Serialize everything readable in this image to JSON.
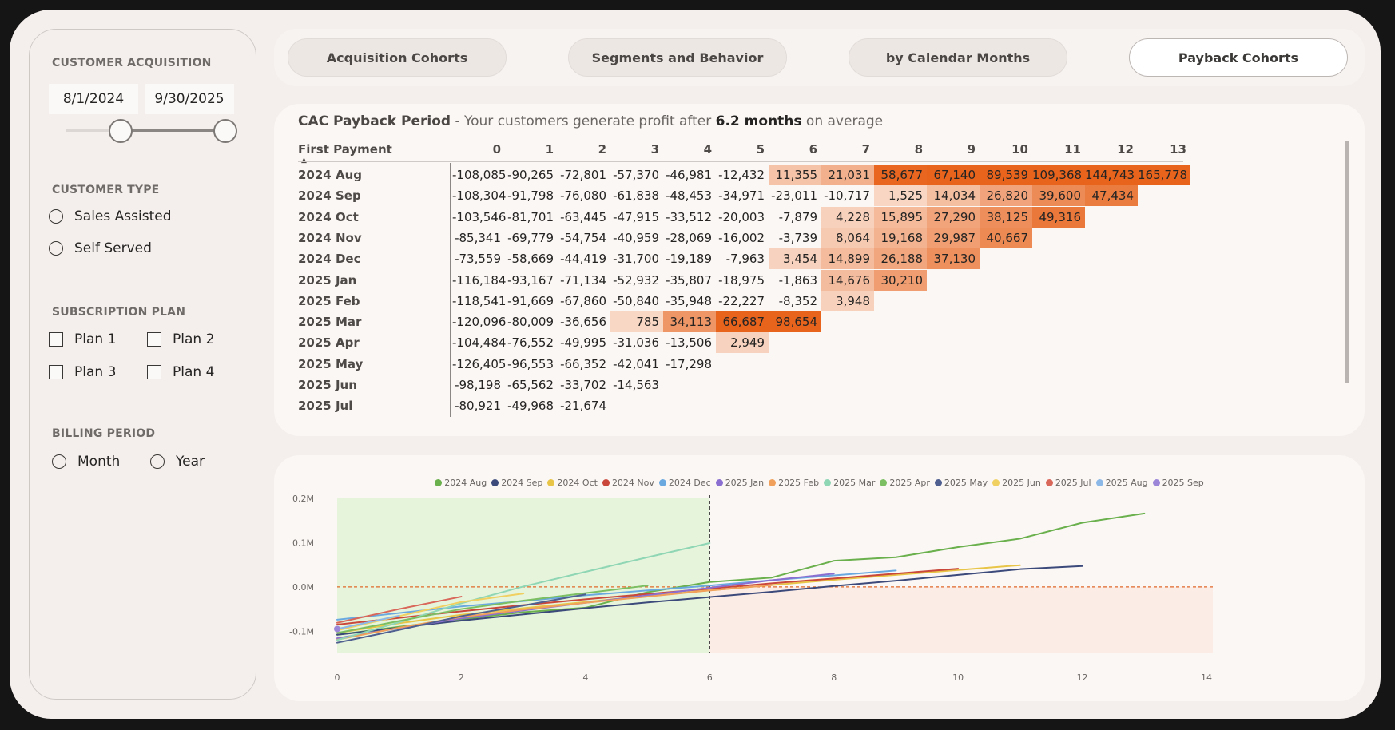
{
  "filters": {
    "customer_acquisition": {
      "title": "CUSTOMER ACQUISITION",
      "start_date": "8/1/2024",
      "end_date": "9/30/2025"
    },
    "customer_type": {
      "title": "CUSTOMER TYPE",
      "options": [
        "Sales Assisted",
        "Self Served"
      ]
    },
    "subscription_plan": {
      "title": "SUBSCRIPTION PLAN",
      "options": [
        "Plan 1",
        "Plan 2",
        "Plan 3",
        "Plan 4"
      ]
    },
    "billing_period": {
      "title": "BILLING PERIOD",
      "options": [
        "Month",
        "Year"
      ]
    }
  },
  "tabs": [
    {
      "label": "Acquisition Cohorts",
      "active": false
    },
    {
      "label": "Segments and Behavior",
      "active": false
    },
    {
      "label": "by Calendar Months",
      "active": false
    },
    {
      "label": "Payback Cohorts",
      "active": true
    }
  ],
  "matrix": {
    "title_main": "CAC Payback Period",
    "title_pre": " - Your customers generate profit after ",
    "title_value": "6.2 months",
    "title_post": " on average",
    "row_header": "First Payment",
    "sort_indicator": "▲",
    "columns": [
      "0",
      "1",
      "2",
      "3",
      "4",
      "5",
      "6",
      "7",
      "8",
      "9",
      "10",
      "11",
      "12",
      "13"
    ],
    "rows": [
      {
        "label": "2024 Aug",
        "values": [
          -108085,
          -90265,
          -72801,
          -57370,
          -46981,
          -12432,
          11355,
          21031,
          58677,
          67140,
          89539,
          109368,
          144743,
          165778
        ]
      },
      {
        "label": "2024 Sep",
        "values": [
          -108304,
          -91798,
          -76080,
          -61838,
          -48453,
          -34971,
          -23011,
          -10717,
          1525,
          14034,
          26820,
          39600,
          47434
        ]
      },
      {
        "label": "2024 Oct",
        "values": [
          -103546,
          -81701,
          -63445,
          -47915,
          -33512,
          -20003,
          -7879,
          4228,
          15895,
          27290,
          38125,
          49316
        ]
      },
      {
        "label": "2024 Nov",
        "values": [
          -85341,
          -69779,
          -54754,
          -40959,
          -28069,
          -16002,
          -3739,
          8064,
          19168,
          29987,
          40667
        ]
      },
      {
        "label": "2024 Dec",
        "values": [
          -73559,
          -58669,
          -44419,
          -31700,
          -19189,
          -7963,
          3454,
          14899,
          26188,
          37130
        ]
      },
      {
        "label": "2025 Jan",
        "values": [
          -116184,
          -93167,
          -71134,
          -52932,
          -35807,
          -18975,
          -1863,
          14676,
          30210
        ]
      },
      {
        "label": "2025 Feb",
        "values": [
          -118541,
          -91669,
          -67860,
          -50840,
          -35948,
          -22227,
          -8352,
          3948
        ]
      },
      {
        "label": "2025 Mar",
        "values": [
          -120096,
          -80009,
          -36656,
          785,
          34113,
          66687,
          98654
        ]
      },
      {
        "label": "2025 Apr",
        "values": [
          -104484,
          -76552,
          -49995,
          -31036,
          -13506,
          2949
        ]
      },
      {
        "label": "2025 May",
        "values": [
          -126405,
          -96553,
          -66352,
          -42041,
          -17298
        ]
      },
      {
        "label": "2025 Jun",
        "values": [
          -98198,
          -65562,
          -33702,
          -14563
        ]
      },
      {
        "label": "2025 Jul",
        "values": [
          -80921,
          -49968,
          -21674
        ]
      }
    ]
  },
  "colors": {
    "heat_max": "#e8631c",
    "heat_min": "#fbeee6",
    "breakeven_line": "#e0692a",
    "payback_zone": "#e6f4dc",
    "loss_zone": "#fbece6"
  },
  "chart_data": {
    "type": "line",
    "title": "",
    "xlabel": "",
    "ylabel": "",
    "xlim": [
      0,
      14
    ],
    "ylim": [
      -0.15,
      0.2
    ],
    "x_ticks": [
      0,
      2,
      4,
      6,
      8,
      10,
      12,
      14
    ],
    "x_tick_labels": [
      "0",
      "2",
      "4",
      "6",
      "8",
      "10",
      "12",
      "14"
    ],
    "y_ticks": [
      0.2,
      0.1,
      0.0,
      -0.1
    ],
    "y_tick_labels": [
      "0.2M",
      "0.1M",
      "0.0M",
      "-0.1M"
    ],
    "reference_x": 6,
    "reference_y": 0,
    "series": [
      {
        "name": "2024 Aug",
        "color": "#6ab04c",
        "values": [
          -0.108,
          -0.09,
          -0.073,
          -0.057,
          -0.047,
          -0.012,
          0.011,
          0.021,
          0.059,
          0.067,
          0.09,
          0.109,
          0.145,
          0.166
        ]
      },
      {
        "name": "2024 Sep",
        "color": "#3b4a7a",
        "values": [
          -0.108,
          -0.092,
          -0.076,
          -0.062,
          -0.048,
          -0.035,
          -0.023,
          -0.011,
          0.002,
          0.014,
          0.027,
          0.04,
          0.047
        ]
      },
      {
        "name": "2024 Oct",
        "color": "#e8c547",
        "values": [
          -0.104,
          -0.082,
          -0.063,
          -0.048,
          -0.034,
          -0.02,
          -0.008,
          0.004,
          0.016,
          0.027,
          0.038,
          0.049
        ]
      },
      {
        "name": "2024 Nov",
        "color": "#c9473b",
        "values": [
          -0.085,
          -0.07,
          -0.055,
          -0.041,
          -0.028,
          -0.016,
          -0.004,
          0.008,
          0.019,
          0.03,
          0.041
        ]
      },
      {
        "name": "2024 Dec",
        "color": "#6aa9e0",
        "values": [
          -0.074,
          -0.059,
          -0.044,
          -0.032,
          -0.019,
          -0.008,
          0.003,
          0.015,
          0.026,
          0.037
        ]
      },
      {
        "name": "2025 Jan",
        "color": "#8a6fd1",
        "values": [
          -0.116,
          -0.093,
          -0.071,
          -0.053,
          -0.036,
          -0.019,
          -0.002,
          0.015,
          0.03
        ]
      },
      {
        "name": "2025 Feb",
        "color": "#f0a05a",
        "values": [
          -0.119,
          -0.092,
          -0.068,
          -0.051,
          -0.036,
          -0.022,
          -0.008,
          0.004
        ]
      },
      {
        "name": "2025 Mar",
        "color": "#8fd6b4",
        "values": [
          -0.12,
          -0.08,
          -0.037,
          0.001,
          0.034,
          0.067,
          0.099
        ]
      },
      {
        "name": "2025 Apr",
        "color": "#7cbf63",
        "values": [
          -0.104,
          -0.077,
          -0.05,
          -0.031,
          -0.014,
          0.003
        ]
      },
      {
        "name": "2025 May",
        "color": "#4f5f8f",
        "values": [
          -0.126,
          -0.097,
          -0.066,
          -0.042,
          -0.017
        ]
      },
      {
        "name": "2025 Jun",
        "color": "#f0d060",
        "values": [
          -0.098,
          -0.066,
          -0.034,
          -0.015
        ]
      },
      {
        "name": "2025 Jul",
        "color": "#d9675a",
        "values": [
          -0.081,
          -0.05,
          -0.022
        ]
      },
      {
        "name": "2025 Aug",
        "color": "#8cb8e8",
        "values": [
          -0.095,
          -0.065
        ]
      },
      {
        "name": "2025 Sep",
        "color": "#9b86d8",
        "values": [
          -0.095
        ]
      }
    ]
  }
}
